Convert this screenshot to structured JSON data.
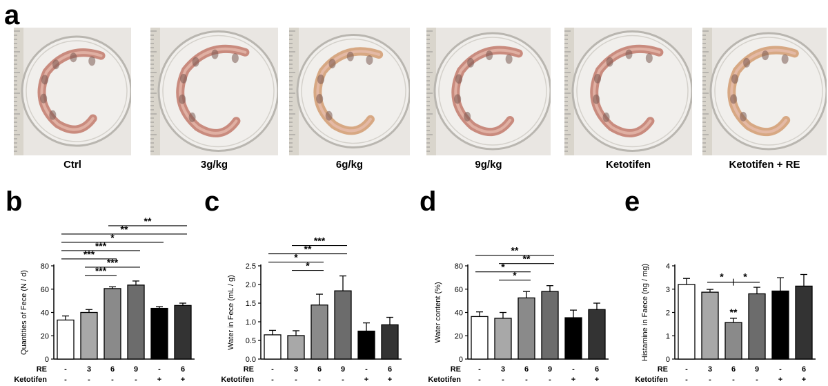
{
  "panel_a": {
    "letter": "a",
    "captions": [
      "Ctrl",
      "3g/kg",
      "6g/kg",
      "9g/kg",
      "Ketotifen",
      "Ketotifen + RE"
    ]
  },
  "row_labels": {
    "re": "RE",
    "ketotifen": "Ketotifen"
  },
  "colors": {
    "bars": [
      "#ffffff",
      "#a8a8a8",
      "#8a8a8a",
      "#6c6c6c",
      "#000000",
      "#333333"
    ]
  },
  "chart_data": [
    {
      "panel": "b",
      "type": "bar",
      "ylabel": "Quantities of Fece (N / d)",
      "ylim": [
        0,
        80
      ],
      "yticks": [
        0,
        20,
        40,
        60,
        80
      ],
      "re_row": [
        "-",
        "3",
        "6",
        "9",
        "-",
        "6"
      ],
      "ketotifen_row": [
        "-",
        "-",
        "-",
        "-",
        "+",
        "+"
      ],
      "values": [
        33.5,
        40,
        60.5,
        63.5,
        43.5,
        46
      ],
      "errors": [
        3.5,
        2.5,
        1.5,
        3.5,
        1.5,
        2
      ],
      "significance": [
        {
          "from": 1,
          "to": 2,
          "label": "***"
        },
        {
          "from": 1,
          "to": 3,
          "label": "***"
        },
        {
          "from": 0,
          "to": 2,
          "label": "***"
        },
        {
          "from": 0,
          "to": 3,
          "label": "***"
        },
        {
          "from": 0,
          "to": 4,
          "label": "*"
        },
        {
          "from": 0,
          "to": 5,
          "label": "**"
        },
        {
          "from": 2,
          "to": 5,
          "label": "**"
        }
      ]
    },
    {
      "panel": "c",
      "type": "bar",
      "ylabel": "Water in Fece (mL / g)",
      "ylim": [
        0,
        2.5
      ],
      "yticks": [
        0.0,
        0.5,
        1.0,
        1.5,
        2.0,
        2.5
      ],
      "re_row": [
        "-",
        "3",
        "6",
        "9",
        "-",
        "6"
      ],
      "ketotifen_row": [
        "-",
        "-",
        "-",
        "-",
        "+",
        "+"
      ],
      "values": [
        0.65,
        0.63,
        1.45,
        1.83,
        0.75,
        0.92
      ],
      "errors": [
        0.12,
        0.13,
        0.29,
        0.4,
        0.22,
        0.2
      ],
      "significance": [
        {
          "from": 1,
          "to": 2,
          "label": "*"
        },
        {
          "from": 0,
          "to": 2,
          "label": "*"
        },
        {
          "from": 0,
          "to": 3,
          "label": "**"
        },
        {
          "from": 1,
          "to": 3,
          "label": "***"
        }
      ]
    },
    {
      "panel": "d",
      "type": "bar",
      "ylabel": "Water content (%)",
      "ylim": [
        0,
        80
      ],
      "yticks": [
        0,
        20,
        40,
        60,
        80
      ],
      "re_row": [
        "-",
        "3",
        "6",
        "9",
        "-",
        "6"
      ],
      "ketotifen_row": [
        "-",
        "-",
        "-",
        "-",
        "+",
        "+"
      ],
      "values": [
        36.5,
        35,
        52.5,
        58,
        35.5,
        42.5
      ],
      "errors": [
        4,
        5,
        5.5,
        5,
        6.5,
        5.5
      ],
      "significance": [
        {
          "from": 1,
          "to": 2,
          "label": "*"
        },
        {
          "from": 0,
          "to": 2,
          "label": "*"
        },
        {
          "from": 1,
          "to": 3,
          "label": "**"
        },
        {
          "from": 0,
          "to": 3,
          "label": "**"
        }
      ]
    },
    {
      "panel": "e",
      "type": "bar",
      "ylabel": "Histamine in Faece (ng / mg)",
      "ylim": [
        0,
        4
      ],
      "yticks": [
        0,
        1,
        2,
        3,
        4
      ],
      "re_row": [
        "-",
        "3",
        "6",
        "9",
        "-",
        "6"
      ],
      "ketotifen_row": [
        "-",
        "-",
        "-",
        "-",
        "+",
        "+"
      ],
      "values": [
        3.2,
        2.87,
        1.57,
        2.8,
        2.92,
        3.13
      ],
      "errors": [
        0.26,
        0.12,
        0.18,
        0.28,
        0.57,
        0.5
      ],
      "bar_labels": [
        {
          "index": 2,
          "label": "**"
        }
      ],
      "significance": [
        {
          "from": 1,
          "to": 2,
          "label": "*"
        },
        {
          "from": 2,
          "to": 3,
          "label": "*"
        }
      ]
    }
  ]
}
